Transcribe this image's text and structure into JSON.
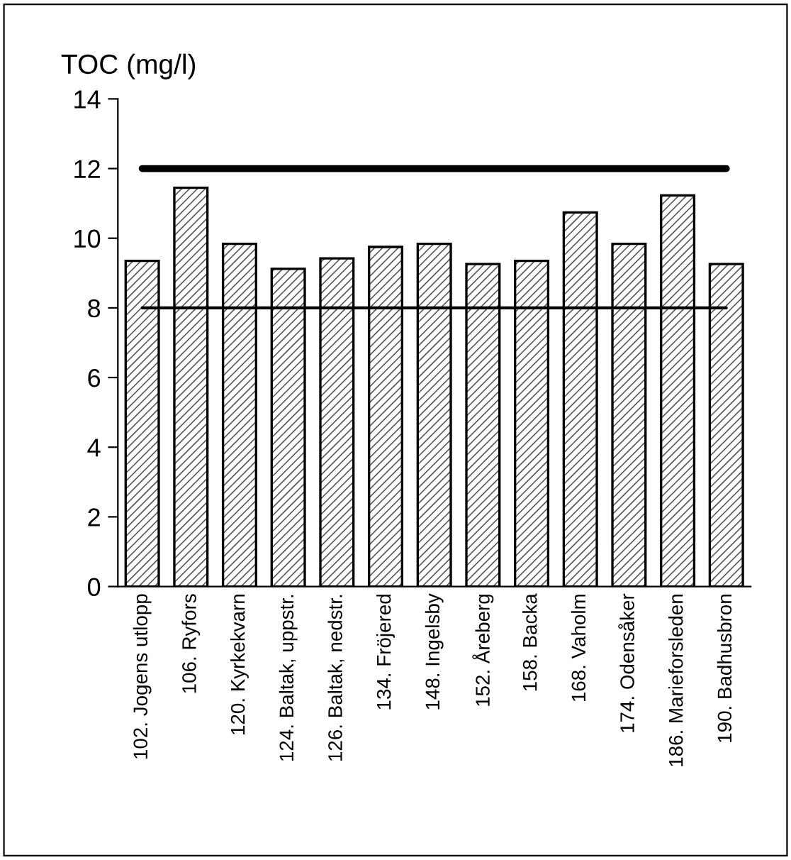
{
  "chart_data": {
    "type": "bar",
    "ylabel": "TOC (mg/l)",
    "categories": [
      "102. Jogens utlopp",
      "106. Ryfors",
      "120. Kyrkekvarn",
      "124. Baltak, uppstr.",
      "126. Baltak, nedstr.",
      "134. Fröjered",
      "148. Ingelsby",
      "152. Åreberg",
      "158. Backa",
      "168. Vaholm",
      "174. Odensåker",
      "186. Marieforsleden",
      "190. Badhusbron"
    ],
    "values": [
      9.35,
      11.45,
      9.84,
      9.12,
      9.42,
      9.75,
      9.84,
      9.26,
      9.35,
      10.74,
      9.84,
      11.23,
      9.26
    ],
    "color": "#595959",
    "ylim": [
      0,
      14
    ],
    "yticks": [
      0,
      2,
      4,
      6,
      8,
      10,
      12,
      14
    ],
    "grid": false,
    "ref_lines": [
      {
        "axis": "y",
        "value": 12,
        "color": "#000000"
      },
      {
        "axis": "y",
        "value": 8,
        "color": "#000000"
      }
    ]
  }
}
